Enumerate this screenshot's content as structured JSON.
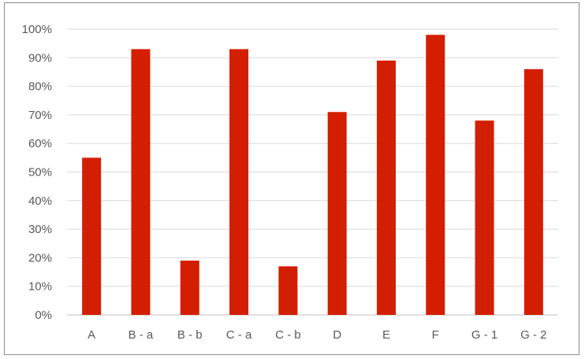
{
  "chart_data": {
    "type": "bar",
    "categories": [
      "A",
      "B - a",
      "B - b",
      "C - a",
      "C - b",
      "D",
      "E",
      "F",
      "G - 1",
      "G - 2"
    ],
    "values": [
      55,
      93,
      19,
      93,
      17,
      71,
      89,
      98,
      68,
      86
    ],
    "ylim": [
      0,
      100
    ],
    "y_ticks": [
      "0%",
      "10%",
      "20%",
      "30%",
      "40%",
      "50%",
      "60%",
      "70%",
      "80%",
      "90%",
      "100%"
    ],
    "grid": true,
    "legend": "none",
    "colors": {
      "bar": "#d41e00",
      "grid": "#d9d9d9",
      "axis": "#bfbfbf",
      "text": "#595959"
    }
  }
}
